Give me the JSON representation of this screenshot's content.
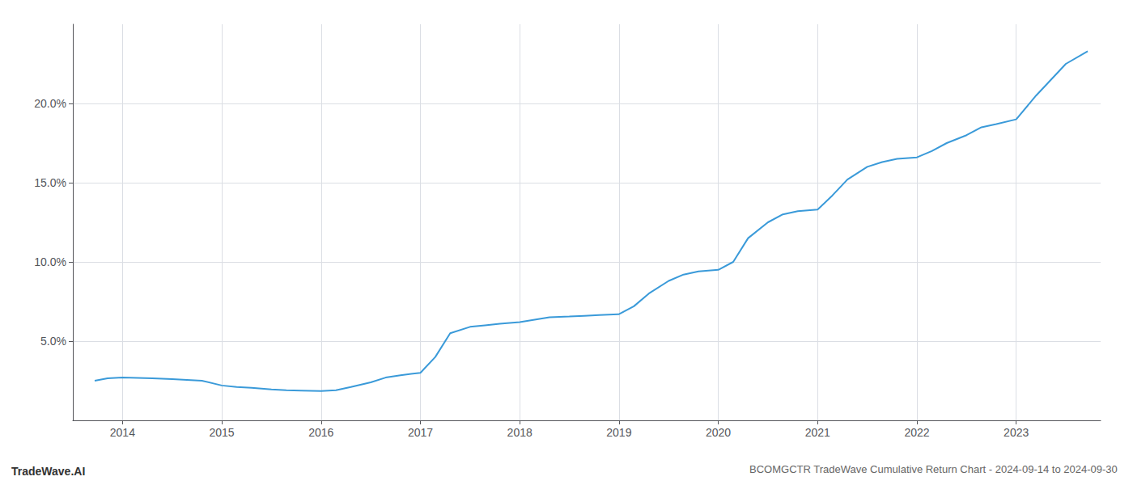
{
  "chart_data": {
    "type": "line",
    "title": "BCOMGCTR TradeWave Cumulative Return Chart - 2024-09-14 to 2024-09-30",
    "annotations": [
      "TradeWave.AI"
    ],
    "color": "#3a9ad9",
    "x": [
      2013.72,
      2013.85,
      2014.0,
      2014.15,
      2014.3,
      2014.5,
      2014.65,
      2014.8,
      2015.0,
      2015.15,
      2015.3,
      2015.5,
      2015.65,
      2015.8,
      2016.0,
      2016.15,
      2016.3,
      2016.5,
      2016.65,
      2016.8,
      2017.0,
      2017.15,
      2017.3,
      2017.5,
      2017.65,
      2017.8,
      2018.0,
      2018.15,
      2018.3,
      2018.5,
      2018.65,
      2018.8,
      2019.0,
      2019.15,
      2019.3,
      2019.5,
      2019.65,
      2019.8,
      2020.0,
      2020.15,
      2020.3,
      2020.5,
      2020.65,
      2020.8,
      2021.0,
      2021.15,
      2021.3,
      2021.5,
      2021.65,
      2021.8,
      2022.0,
      2022.15,
      2022.3,
      2022.5,
      2022.65,
      2022.8,
      2023.0,
      2023.2,
      2023.5,
      2023.72
    ],
    "values": [
      2.5,
      2.65,
      2.7,
      2.68,
      2.65,
      2.6,
      2.55,
      2.5,
      2.2,
      2.1,
      2.05,
      1.95,
      1.9,
      1.88,
      1.85,
      1.9,
      2.1,
      2.4,
      2.7,
      2.85,
      3.0,
      4.0,
      5.5,
      5.9,
      6.0,
      6.1,
      6.2,
      6.35,
      6.5,
      6.55,
      6.6,
      6.65,
      6.7,
      7.2,
      8.0,
      8.8,
      9.2,
      9.4,
      9.5,
      10.0,
      11.5,
      12.5,
      13.0,
      13.2,
      13.3,
      14.2,
      15.2,
      16.0,
      16.3,
      16.5,
      16.6,
      17.0,
      17.5,
      18.0,
      18.5,
      18.7,
      19.0,
      20.5,
      22.5,
      23.3
    ],
    "xlim": [
      2013.5,
      2023.85
    ],
    "xticks": [
      2014,
      2015,
      2016,
      2017,
      2018,
      2019,
      2020,
      2021,
      2022,
      2023
    ],
    "ylim": [
      0,
      25
    ],
    "yticks": [
      {
        "value": 5.0,
        "label": "5.0%"
      },
      {
        "value": 10.0,
        "label": "10.0%"
      },
      {
        "value": 15.0,
        "label": "15.0%"
      },
      {
        "value": 20.0,
        "label": "20.0%"
      }
    ],
    "grid": true
  }
}
